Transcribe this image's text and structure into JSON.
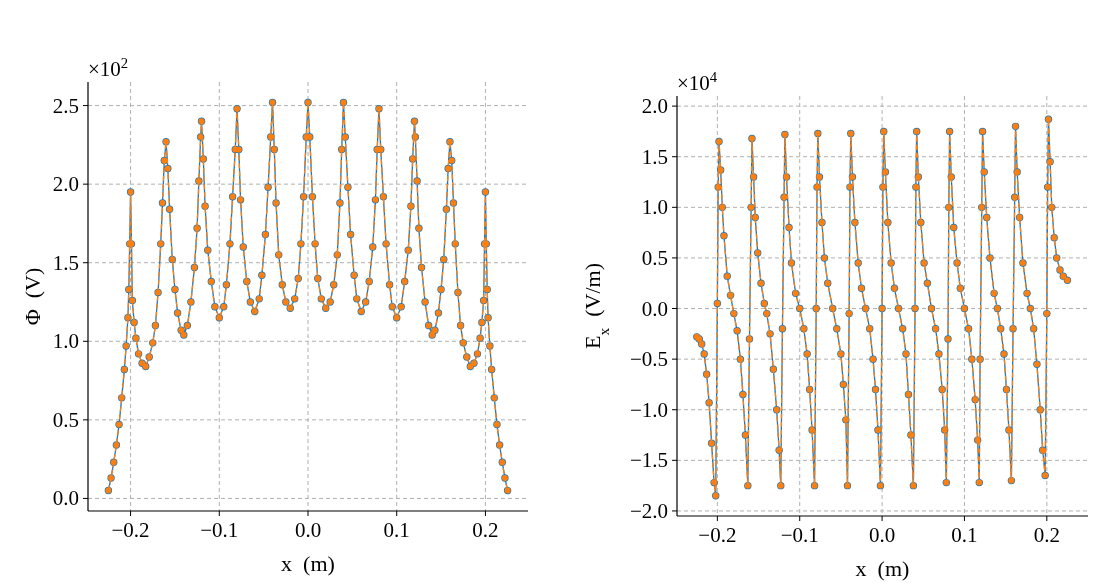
{
  "chart_data": [
    {
      "type": "line",
      "ylabel": "Φ  (V)",
      "xlabel": "x  (m)",
      "annotations": [
        "×10$^{2}$"
      ],
      "xlim": [
        -0.248,
        0.248
      ],
      "xticks": [
        {
          "value": -0.2,
          "label": "−0.2"
        },
        {
          "value": -0.1,
          "label": "−0.1"
        },
        {
          "value": 0,
          "label": "0.0"
        },
        {
          "value": 0.1,
          "label": "0.1"
        },
        {
          "value": 0.2,
          "label": "0.2"
        }
      ],
      "ylim": [
        -0.08,
        2.65
      ],
      "yticks": [
        {
          "value": 0,
          "label": "0.0"
        },
        0.5,
        {
          "value": 1,
          "label": "1.0"
        },
        1.5,
        {
          "value": 2,
          "label": "2.0"
        },
        2.5
      ],
      "grid": true,
      "marker": "circle",
      "x": [
        -0.225,
        -0.222,
        -0.219,
        -0.216,
        -0.213,
        -0.21,
        -0.207,
        -0.205,
        -0.203,
        -0.202,
        -0.201,
        -0.2,
        -0.199,
        -0.198,
        -0.196,
        -0.194,
        -0.191,
        -0.187,
        -0.183,
        -0.179,
        -0.175,
        -0.172,
        -0.169,
        -0.166,
        -0.164,
        -0.162,
        -0.16,
        -0.158,
        -0.156,
        -0.153,
        -0.15,
        -0.147,
        -0.143,
        -0.14,
        -0.136,
        -0.132,
        -0.128,
        -0.125,
        -0.123,
        -0.121,
        -0.12,
        -0.118,
        -0.116,
        -0.113,
        -0.109,
        -0.105,
        -0.1,
        -0.095,
        -0.092,
        -0.088,
        -0.085,
        -0.082,
        -0.08,
        -0.078,
        -0.076,
        -0.073,
        -0.069,
        -0.065,
        -0.06,
        -0.055,
        -0.052,
        -0.048,
        -0.045,
        -0.042,
        -0.04,
        -0.038,
        -0.036,
        -0.033,
        -0.029,
        -0.025,
        -0.02,
        -0.015,
        -0.011,
        -0.008,
        -0.005,
        -0.002,
        0,
        0.002,
        0.005,
        0.008,
        0.011,
        0.015,
        0.02,
        0.025,
        0.029,
        0.033,
        0.036,
        0.038,
        0.04,
        0.042,
        0.045,
        0.048,
        0.052,
        0.055,
        0.06,
        0.065,
        0.069,
        0.073,
        0.076,
        0.078,
        0.08,
        0.082,
        0.085,
        0.088,
        0.092,
        0.095,
        0.1,
        0.105,
        0.109,
        0.113,
        0.116,
        0.118,
        0.12,
        0.121,
        0.123,
        0.125,
        0.128,
        0.132,
        0.136,
        0.14,
        0.143,
        0.147,
        0.15,
        0.153,
        0.156,
        0.158,
        0.16,
        0.162,
        0.164,
        0.166,
        0.169,
        0.172,
        0.175,
        0.179,
        0.183,
        0.187,
        0.191,
        0.194,
        0.196,
        0.198,
        0.199,
        0.2,
        0.201,
        0.202,
        0.203,
        0.205,
        0.207,
        0.21,
        0.213,
        0.216,
        0.219,
        0.222,
        0.225
      ],
      "series": [
        {
          "color": "#1f77b4",
          "line_style": "solid",
          "values": [
            0.05,
            0.13,
            0.23,
            0.34,
            0.47,
            0.64,
            0.82,
            0.97,
            1.15,
            1.33,
            1.62,
            1.95,
            1.62,
            1.26,
            1.12,
            1.02,
            0.92,
            0.86,
            0.84,
            0.9,
            0.99,
            1.1,
            1.31,
            1.62,
            1.88,
            2.15,
            2.27,
            2.1,
            1.84,
            1.52,
            1.33,
            1.18,
            1.07,
            1.04,
            1.1,
            1.25,
            1.47,
            1.72,
            2.02,
            2.3,
            2.4,
            2.16,
            1.86,
            1.58,
            1.38,
            1.22,
            1.15,
            1.22,
            1.36,
            1.62,
            1.92,
            2.22,
            2.48,
            2.22,
            1.9,
            1.6,
            1.38,
            1.25,
            1.19,
            1.27,
            1.42,
            1.68,
            1.98,
            2.3,
            2.52,
            2.22,
            1.88,
            1.55,
            1.36,
            1.25,
            1.21,
            1.27,
            1.4,
            1.62,
            1.92,
            2.3,
            2.52,
            2.3,
            1.92,
            1.62,
            1.4,
            1.27,
            1.21,
            1.25,
            1.36,
            1.55,
            1.88,
            2.22,
            2.52,
            2.3,
            1.98,
            1.68,
            1.42,
            1.27,
            1.19,
            1.25,
            1.38,
            1.6,
            1.9,
            2.22,
            2.48,
            2.22,
            1.92,
            1.62,
            1.36,
            1.22,
            1.15,
            1.22,
            1.38,
            1.58,
            1.86,
            2.16,
            2.4,
            2.3,
            2.02,
            1.72,
            1.47,
            1.25,
            1.1,
            1.04,
            1.07,
            1.18,
            1.33,
            1.52,
            1.84,
            2.1,
            2.27,
            2.15,
            1.88,
            1.62,
            1.31,
            1.1,
            0.99,
            0.9,
            0.84,
            0.86,
            0.92,
            1.02,
            1.12,
            1.26,
            1.62,
            1.95,
            1.62,
            1.33,
            1.15,
            0.97,
            0.82,
            0.64,
            0.47,
            0.34,
            0.23,
            0.13,
            0.05
          ]
        },
        {
          "color": "#ff7f0e",
          "line_style": "dashed",
          "values": [
            0.05,
            0.13,
            0.23,
            0.34,
            0.47,
            0.64,
            0.82,
            0.97,
            1.15,
            1.33,
            1.62,
            1.95,
            1.62,
            1.26,
            1.12,
            1.02,
            0.92,
            0.86,
            0.84,
            0.9,
            0.99,
            1.1,
            1.31,
            1.62,
            1.88,
            2.15,
            2.27,
            2.1,
            1.84,
            1.52,
            1.33,
            1.18,
            1.07,
            1.04,
            1.1,
            1.25,
            1.47,
            1.72,
            2.02,
            2.3,
            2.4,
            2.16,
            1.86,
            1.58,
            1.38,
            1.22,
            1.15,
            1.22,
            1.36,
            1.62,
            1.92,
            2.22,
            2.48,
            2.22,
            1.9,
            1.6,
            1.38,
            1.25,
            1.19,
            1.27,
            1.42,
            1.68,
            1.98,
            2.3,
            2.52,
            2.22,
            1.88,
            1.55,
            1.36,
            1.25,
            1.21,
            1.27,
            1.4,
            1.62,
            1.92,
            2.3,
            2.52,
            2.3,
            1.92,
            1.62,
            1.4,
            1.27,
            1.21,
            1.25,
            1.36,
            1.55,
            1.88,
            2.22,
            2.52,
            2.3,
            1.98,
            1.68,
            1.42,
            1.27,
            1.19,
            1.25,
            1.38,
            1.6,
            1.9,
            2.22,
            2.48,
            2.22,
            1.92,
            1.62,
            1.36,
            1.22,
            1.15,
            1.22,
            1.38,
            1.58,
            1.86,
            2.16,
            2.4,
            2.3,
            2.02,
            1.72,
            1.47,
            1.25,
            1.1,
            1.04,
            1.07,
            1.18,
            1.33,
            1.52,
            1.84,
            2.1,
            2.27,
            2.15,
            1.88,
            1.62,
            1.31,
            1.1,
            0.99,
            0.9,
            0.84,
            0.86,
            0.92,
            1.02,
            1.12,
            1.26,
            1.62,
            1.95,
            1.62,
            1.33,
            1.15,
            0.97,
            0.82,
            0.64,
            0.47,
            0.34,
            0.23,
            0.13,
            0.05
          ]
        }
      ]
    },
    {
      "type": "line",
      "ylabel": "E$_{x}$  (V/m)",
      "xlabel": "x  (m)",
      "annotations": [
        "×10$^{4}$"
      ],
      "xlim": [
        -0.249,
        0.25
      ],
      "xticks": [
        {
          "value": -0.2,
          "label": "−0.2"
        },
        {
          "value": -0.1,
          "label": "−0.1"
        },
        {
          "value": 0,
          "label": "0.0"
        },
        {
          "value": 0.1,
          "label": "0.1"
        },
        {
          "value": 0.2,
          "label": "0.2"
        }
      ],
      "ylim": [
        -2.05,
        2.1
      ],
      "yticks": [
        {
          "value": -2,
          "label": "−2.0"
        },
        {
          "value": -1.5,
          "label": "−1.5"
        },
        {
          "value": -1,
          "label": "−1.0"
        },
        {
          "value": -0.5,
          "label": "−0.5"
        },
        {
          "value": 0,
          "label": "0.0"
        },
        0.5,
        {
          "value": 1,
          "label": "1.0"
        },
        1.5,
        {
          "value": 2,
          "label": "2.0"
        }
      ],
      "grid": true,
      "marker": "circle",
      "x": [
        -0.225,
        -0.222,
        -0.219,
        -0.216,
        -0.213,
        -0.21,
        -0.207,
        -0.204,
        -0.202,
        -0.2,
        -0.199,
        -0.198,
        -0.196,
        -0.194,
        -0.192,
        -0.188,
        -0.184,
        -0.18,
        -0.176,
        -0.172,
        -0.169,
        -0.166,
        -0.163,
        -0.161,
        -0.159,
        -0.158,
        -0.156,
        -0.154,
        -0.151,
        -0.147,
        -0.143,
        -0.14,
        -0.136,
        -0.132,
        -0.128,
        -0.125,
        -0.123,
        -0.121,
        -0.119,
        -0.118,
        -0.116,
        -0.113,
        -0.11,
        -0.105,
        -0.1,
        -0.095,
        -0.091,
        -0.088,
        -0.085,
        -0.082,
        -0.08,
        -0.079,
        -0.078,
        -0.076,
        -0.073,
        -0.07,
        -0.066,
        -0.06,
        -0.055,
        -0.05,
        -0.047,
        -0.044,
        -0.042,
        -0.04,
        -0.039,
        -0.038,
        -0.036,
        -0.033,
        -0.029,
        -0.025,
        -0.02,
        -0.015,
        -0.011,
        -0.008,
        -0.005,
        -0.002,
        0,
        0.001,
        0.002,
        0.004,
        0.007,
        0.011,
        0.015,
        0.02,
        0.025,
        0.029,
        0.032,
        0.035,
        0.038,
        0.04,
        0.041,
        0.042,
        0.044,
        0.047,
        0.051,
        0.055,
        0.06,
        0.065,
        0.069,
        0.073,
        0.076,
        0.078,
        0.08,
        0.081,
        0.082,
        0.084,
        0.087,
        0.091,
        0.095,
        0.1,
        0.105,
        0.109,
        0.113,
        0.116,
        0.118,
        0.119,
        0.121,
        0.122,
        0.124,
        0.127,
        0.131,
        0.136,
        0.14,
        0.144,
        0.148,
        0.151,
        0.154,
        0.157,
        0.159,
        0.161,
        0.162,
        0.164,
        0.167,
        0.171,
        0.176,
        0.18,
        0.184,
        0.188,
        0.192,
        0.195,
        0.198,
        0.2,
        0.201,
        0.202,
        0.204,
        0.206,
        0.209,
        0.212,
        0.216,
        0.22,
        0.225
      ],
      "series": [
        {
          "color": "#1f77b4",
          "line_style": "solid",
          "values": [
            -0.28,
            -0.3,
            -0.35,
            -0.45,
            -0.65,
            -0.93,
            -1.33,
            -1.72,
            -1.85,
            0.05,
            1.2,
            1.65,
            1.37,
            1,
            0.72,
            0.32,
            0.13,
            -0.05,
            -0.22,
            -0.5,
            -0.85,
            -1.25,
            -1.75,
            -0.3,
            1,
            1.68,
            1.3,
            0.9,
            0.55,
            0.25,
            0.05,
            -0.05,
            -0.25,
            -0.6,
            -1,
            -1.4,
            -1.75,
            -0.2,
            1.1,
            1.72,
            1.3,
            0.8,
            0.45,
            0.15,
            0,
            -0.2,
            -0.45,
            -0.8,
            -1.2,
            -1.75,
            0,
            1.2,
            1.73,
            1.3,
            0.85,
            0.5,
            0.25,
            0,
            -0.2,
            -0.45,
            -0.75,
            -1.1,
            -1.75,
            -0.05,
            1.2,
            1.73,
            1.3,
            0.85,
            0.45,
            0.2,
            0,
            -0.2,
            -0.5,
            -0.8,
            -1.2,
            -1.75,
            0,
            1.2,
            1.75,
            1.35,
            0.85,
            0.45,
            0.2,
            0,
            -0.2,
            -0.45,
            -0.85,
            -1.25,
            -1.75,
            0,
            1.2,
            1.75,
            1.3,
            0.85,
            0.45,
            0.25,
            0,
            -0.2,
            -0.45,
            -0.8,
            -1.2,
            -1.72,
            -0.3,
            1,
            1.75,
            1.3,
            0.8,
            0.45,
            0.2,
            0,
            -0.2,
            -0.5,
            -0.9,
            -1.3,
            -1.72,
            -0.5,
            1,
            1.75,
            1.35,
            0.9,
            0.5,
            0.15,
            0,
            -0.2,
            -0.45,
            -0.8,
            -1.2,
            -1.7,
            -0.2,
            1.1,
            1.8,
            1.35,
            0.9,
            0.45,
            0.15,
            0,
            -0.2,
            -0.55,
            -1,
            -1.4,
            -1.65,
            -0.05,
            1.2,
            1.87,
            1.45,
            1,
            0.7,
            0.5,
            0.38,
            0.32,
            0.28
          ]
        },
        {
          "color": "#ff7f0e",
          "line_style": "dashed",
          "values": [
            -0.28,
            -0.3,
            -0.35,
            -0.45,
            -0.65,
            -0.93,
            -1.33,
            -1.72,
            -1.85,
            0.05,
            1.2,
            1.65,
            1.37,
            1,
            0.72,
            0.32,
            0.13,
            -0.05,
            -0.22,
            -0.5,
            -0.85,
            -1.25,
            -1.75,
            -0.3,
            1,
            1.68,
            1.3,
            0.9,
            0.55,
            0.25,
            0.05,
            -0.05,
            -0.25,
            -0.6,
            -1,
            -1.4,
            -1.75,
            -0.2,
            1.1,
            1.72,
            1.3,
            0.8,
            0.45,
            0.15,
            0,
            -0.2,
            -0.45,
            -0.8,
            -1.2,
            -1.75,
            0,
            1.2,
            1.73,
            1.3,
            0.85,
            0.5,
            0.25,
            0,
            -0.2,
            -0.45,
            -0.75,
            -1.1,
            -1.75,
            -0.05,
            1.2,
            1.73,
            1.3,
            0.85,
            0.45,
            0.2,
            0,
            -0.2,
            -0.5,
            -0.8,
            -1.2,
            -1.75,
            0,
            1.2,
            1.75,
            1.35,
            0.85,
            0.45,
            0.2,
            0,
            -0.2,
            -0.45,
            -0.85,
            -1.25,
            -1.75,
            0,
            1.2,
            1.75,
            1.3,
            0.85,
            0.45,
            0.25,
            0,
            -0.2,
            -0.45,
            -0.8,
            -1.2,
            -1.72,
            -0.3,
            1,
            1.75,
            1.3,
            0.8,
            0.45,
            0.2,
            0,
            -0.2,
            -0.5,
            -0.9,
            -1.3,
            -1.72,
            -0.5,
            1,
            1.75,
            1.35,
            0.9,
            0.5,
            0.15,
            0,
            -0.2,
            -0.45,
            -0.8,
            -1.2,
            -1.7,
            -0.2,
            1.1,
            1.8,
            1.35,
            0.9,
            0.45,
            0.15,
            0,
            -0.2,
            -0.55,
            -1,
            -1.4,
            -1.65,
            -0.05,
            1.2,
            1.87,
            1.45,
            1,
            0.7,
            0.5,
            0.38,
            0.32,
            0.28
          ]
        }
      ]
    }
  ]
}
